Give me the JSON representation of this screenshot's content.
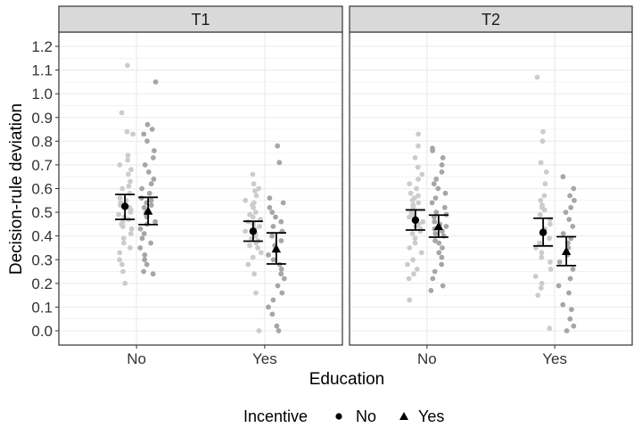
{
  "chart_data": {
    "type": "scatter",
    "subtype": "faceted jitter strip plot with mean and error bars",
    "facets": [
      "T1",
      "T2"
    ],
    "xlabel": "Education",
    "ylabel": "Decision-rule deviation",
    "categories": [
      "No",
      "Yes"
    ],
    "yticks": [
      "0.0",
      "0.1",
      "0.2",
      "0.3",
      "0.4",
      "0.5",
      "0.6",
      "0.7",
      "0.8",
      "0.9",
      "1.0",
      "1.1",
      "1.2"
    ],
    "ylim": [
      -0.06,
      1.25
    ],
    "legend": {
      "title": "Incentive",
      "position": "bottom",
      "entries": [
        {
          "label": "No",
          "shape": "circle"
        },
        {
          "label": "Yes",
          "shape": "triangle"
        }
      ]
    },
    "colors": {
      "incentive_no_points": "#cccccc",
      "incentive_yes_points": "#a6a6a6",
      "summary": "#000000",
      "strip_bg": "#d9d9d9",
      "grid": "#ebebeb"
    },
    "summary": [
      {
        "facet": "T1",
        "education": "No",
        "incentive": "No",
        "mean": 0.525,
        "lower": 0.47,
        "upper": 0.575
      },
      {
        "facet": "T1",
        "education": "No",
        "incentive": "Yes",
        "mean": 0.505,
        "lower": 0.448,
        "upper": 0.563
      },
      {
        "facet": "T1",
        "education": "Yes",
        "incentive": "No",
        "mean": 0.42,
        "lower": 0.378,
        "upper": 0.462
      },
      {
        "facet": "T1",
        "education": "Yes",
        "incentive": "Yes",
        "mean": 0.345,
        "lower": 0.282,
        "upper": 0.413
      },
      {
        "facet": "T2",
        "education": "No",
        "incentive": "No",
        "mean": 0.467,
        "lower": 0.425,
        "upper": 0.51
      },
      {
        "facet": "T2",
        "education": "No",
        "incentive": "Yes",
        "mean": 0.44,
        "lower": 0.395,
        "upper": 0.488
      },
      {
        "facet": "T2",
        "education": "Yes",
        "incentive": "No",
        "mean": 0.415,
        "lower": 0.358,
        "upper": 0.475
      },
      {
        "facet": "T2",
        "education": "Yes",
        "incentive": "Yes",
        "mean": 0.335,
        "lower": 0.275,
        "upper": 0.397
      }
    ],
    "points": [
      {
        "facet": "T1",
        "education": "No",
        "incentive": "No",
        "values": [
          1.12,
          0.92,
          0.84,
          0.83,
          0.74,
          0.72,
          0.7,
          0.68,
          0.66,
          0.63,
          0.61,
          0.6,
          0.58,
          0.56,
          0.55,
          0.54,
          0.53,
          0.52,
          0.51,
          0.5,
          0.49,
          0.48,
          0.47,
          0.46,
          0.45,
          0.44,
          0.43,
          0.41,
          0.39,
          0.37,
          0.35,
          0.33,
          0.3,
          0.28,
          0.25,
          0.2
        ]
      },
      {
        "facet": "T1",
        "education": "No",
        "incentive": "Yes",
        "values": [
          1.05,
          0.87,
          0.85,
          0.83,
          0.8,
          0.76,
          0.73,
          0.7,
          0.67,
          0.64,
          0.62,
          0.6,
          0.58,
          0.56,
          0.55,
          0.54,
          0.53,
          0.52,
          0.5,
          0.49,
          0.48,
          0.46,
          0.45,
          0.43,
          0.41,
          0.39,
          0.37,
          0.35,
          0.32,
          0.3,
          0.28,
          0.25,
          0.24
        ]
      },
      {
        "facet": "T1",
        "education": "Yes",
        "incentive": "No",
        "values": [
          0.66,
          0.62,
          0.6,
          0.59,
          0.57,
          0.55,
          0.54,
          0.53,
          0.52,
          0.5,
          0.49,
          0.48,
          0.47,
          0.46,
          0.45,
          0.44,
          0.43,
          0.42,
          0.41,
          0.4,
          0.39,
          0.38,
          0.37,
          0.36,
          0.35,
          0.33,
          0.31,
          0.28,
          0.24,
          0.16,
          0.0
        ]
      },
      {
        "facet": "T1",
        "education": "Yes",
        "incentive": "Yes",
        "values": [
          0.78,
          0.71,
          0.56,
          0.54,
          0.52,
          0.5,
          0.48,
          0.46,
          0.44,
          0.42,
          0.4,
          0.38,
          0.36,
          0.34,
          0.32,
          0.3,
          0.28,
          0.26,
          0.24,
          0.22,
          0.19,
          0.16,
          0.13,
          0.1,
          0.07,
          0.02,
          0.0
        ]
      },
      {
        "facet": "T2",
        "education": "No",
        "incentive": "No",
        "values": [
          0.83,
          0.78,
          0.73,
          0.69,
          0.66,
          0.64,
          0.62,
          0.6,
          0.58,
          0.57,
          0.56,
          0.55,
          0.54,
          0.53,
          0.52,
          0.5,
          0.49,
          0.48,
          0.47,
          0.46,
          0.45,
          0.44,
          0.43,
          0.42,
          0.41,
          0.39,
          0.37,
          0.35,
          0.33,
          0.3,
          0.28,
          0.26,
          0.24,
          0.22,
          0.13
        ]
      },
      {
        "facet": "T2",
        "education": "No",
        "incentive": "Yes",
        "values": [
          0.77,
          0.76,
          0.73,
          0.7,
          0.67,
          0.64,
          0.62,
          0.6,
          0.58,
          0.56,
          0.54,
          0.52,
          0.5,
          0.49,
          0.48,
          0.46,
          0.45,
          0.44,
          0.43,
          0.42,
          0.41,
          0.4,
          0.38,
          0.37,
          0.35,
          0.33,
          0.31,
          0.28,
          0.25,
          0.22,
          0.19,
          0.17
        ]
      },
      {
        "facet": "T2",
        "education": "Yes",
        "incentive": "No",
        "values": [
          1.07,
          0.84,
          0.8,
          0.71,
          0.67,
          0.62,
          0.57,
          0.55,
          0.53,
          0.52,
          0.51,
          0.49,
          0.47,
          0.45,
          0.43,
          0.41,
          0.39,
          0.37,
          0.35,
          0.33,
          0.31,
          0.29,
          0.26,
          0.23,
          0.2,
          0.18,
          0.15,
          0.01
        ]
      },
      {
        "facet": "T2",
        "education": "Yes",
        "incentive": "Yes",
        "values": [
          0.65,
          0.6,
          0.57,
          0.55,
          0.52,
          0.5,
          0.47,
          0.44,
          0.41,
          0.39,
          0.37,
          0.35,
          0.32,
          0.29,
          0.26,
          0.22,
          0.19,
          0.16,
          0.11,
          0.09,
          0.05,
          0.02,
          0.0
        ]
      }
    ]
  }
}
